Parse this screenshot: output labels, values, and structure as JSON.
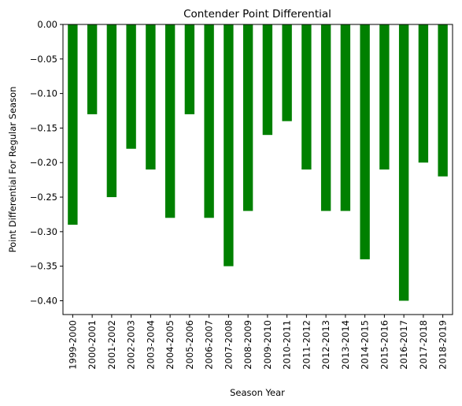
{
  "chart_data": {
    "type": "bar",
    "title": "Contender Point Differential",
    "xlabel": "Season Year",
    "ylabel": "Point Differential For Regular Season",
    "categories": [
      "1999-2000",
      "2000-2001",
      "2001-2002",
      "2002-2003",
      "2003-2004",
      "2004-2005",
      "2005-2006",
      "2006-2007",
      "2007-2008",
      "2008-2009",
      "2009-2010",
      "2010-2011",
      "2011-2012",
      "2012-2013",
      "2013-2014",
      "2014-2015",
      "2015-2016",
      "2016-2017",
      "2017-2018",
      "2018-2019"
    ],
    "values": [
      -0.29,
      -0.13,
      -0.25,
      -0.18,
      -0.21,
      -0.28,
      -0.13,
      -0.28,
      -0.35,
      -0.27,
      -0.16,
      -0.14,
      -0.21,
      -0.27,
      -0.27,
      -0.34,
      -0.21,
      -0.4,
      -0.2,
      -0.22
    ],
    "ylim": [
      -0.42,
      0.0
    ],
    "yticks": [
      0.0,
      -0.05,
      -0.1,
      -0.15,
      -0.2,
      -0.25,
      -0.3,
      -0.35,
      -0.4
    ],
    "ytick_labels": [
      "0.00",
      "−0.05",
      "−0.10",
      "−0.15",
      "−0.20",
      "−0.25",
      "−0.30",
      "−0.35",
      "−0.40"
    ],
    "bar_color": "#008000",
    "grid": false,
    "legend": "none"
  }
}
